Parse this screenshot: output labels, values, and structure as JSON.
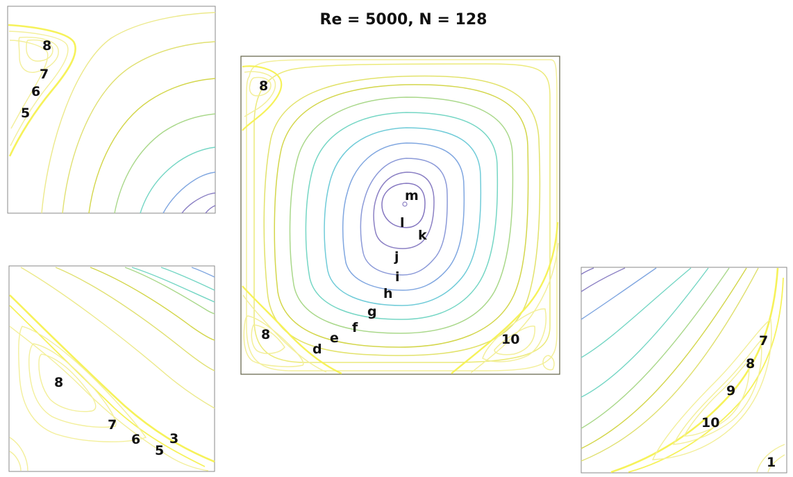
{
  "title": "Re = 5000, N = 128",
  "colors": {
    "ring_outer": "#d3d64a",
    "ring_mid": "#74d6c4",
    "ring_blue": "#7f9fdc",
    "ring_inner": "#8b80c4",
    "secondary": "#f6f25a",
    "secondary_light": "#f3ef9a",
    "frame": "#6b6b52"
  },
  "panels": {
    "main": {
      "labels": {
        "m": "m",
        "l": "l",
        "k": "k",
        "j": "j",
        "i": "i",
        "h": "h",
        "g": "g",
        "f": "f",
        "e": "e",
        "d": "d",
        "tl": "8",
        "bl": "8",
        "br": "10"
      }
    },
    "top_left": {
      "labels": [
        "8",
        "7",
        "6",
        "5"
      ]
    },
    "bottom_left": {
      "labels": [
        "8",
        "7",
        "6",
        "5",
        "3"
      ]
    },
    "bottom_right": {
      "labels": [
        "7",
        "8",
        "9",
        "10",
        "1"
      ]
    }
  }
}
